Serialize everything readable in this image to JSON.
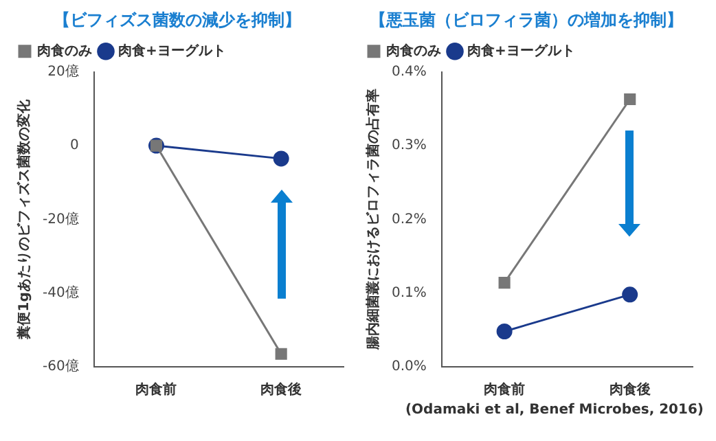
{
  "chart_data": [
    {
      "type": "line",
      "title": "【ビフィズス菌数の減少を抑制】",
      "ylabel": "糞便1gあたりのビフィズス菌数の変化",
      "categories": [
        "肉食前",
        "肉食後"
      ],
      "series": [
        {
          "name": "肉食のみ",
          "color": "#777777",
          "marker": "square",
          "values": [
            0,
            -56.5
          ]
        },
        {
          "name": "肉食+ヨーグルト",
          "color": "#1a3a8c",
          "marker": "circle",
          "values": [
            0,
            -3.5
          ]
        }
      ],
      "ylim": [
        -60,
        20
      ],
      "yticks": [
        {
          "value": -60,
          "label": "-60億"
        },
        {
          "value": -40,
          "label": "-40億"
        },
        {
          "value": -20,
          "label": "-20億"
        },
        0,
        {
          "value": 20,
          "label": "20億"
        }
      ],
      "grid": false,
      "legend": "top left"
    },
    {
      "type": "line",
      "title": "【悪玉菌（ビロフィラ菌）の増加を抑制】",
      "ylabel": "腸内細菌叢におけるビロフィラ菌の占有率",
      "categories": [
        "肉食前",
        "肉食後"
      ],
      "series": [
        {
          "name": "肉食のみ",
          "color": "#777777",
          "marker": "square",
          "values": [
            0.114,
            0.363
          ]
        },
        {
          "name": "肉食+ヨーグルト",
          "color": "#1a3a8c",
          "marker": "circle",
          "values": [
            0.048,
            0.098
          ]
        }
      ],
      "ylim": [
        0,
        0.4
      ],
      "yticks": [
        {
          "value": 0,
          "label": "0.0%"
        },
        {
          "value": 0.1,
          "label": "0.1%"
        },
        {
          "value": 0.2,
          "label": "0.2%"
        },
        {
          "value": 0.3,
          "label": "0.3%"
        },
        {
          "value": 0.4,
          "label": "0.4%"
        }
      ],
      "grid": false,
      "legend": "top left",
      "annotations": [
        "(Odamaki et al, Benef Microbes, 2016)"
      ]
    }
  ]
}
